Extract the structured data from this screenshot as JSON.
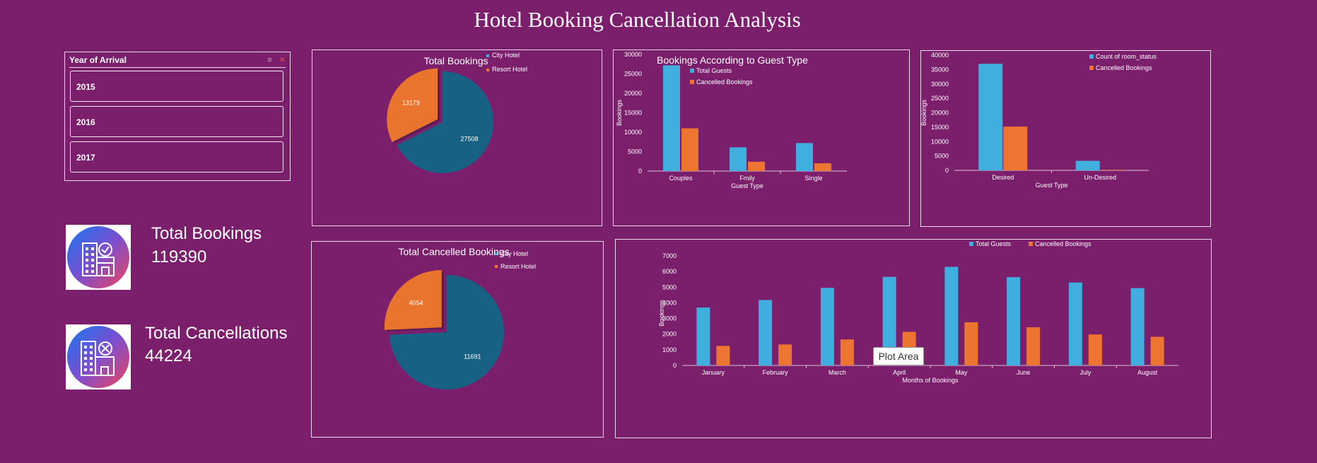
{
  "dashboard": {
    "title": "Hotel Booking Cancellation Analysis",
    "slicer": {
      "header": "Year of Arrival",
      "items": [
        "2015",
        "2016",
        "2017"
      ]
    },
    "kpis": {
      "bookings_label": "Total Bookings",
      "bookings_value": "119390",
      "cancellations_label": "Total Cancellations",
      "cancellations_value": "44224"
    },
    "tooltip": "Plot Area"
  },
  "colors": {
    "background": "#7b1f6c",
    "blue": "#41aee0",
    "orange": "#ed7532",
    "pie_blue": "#176184",
    "pie_orange": "#e9742e"
  },
  "chart_data": [
    {
      "id": "total-bookings",
      "type": "pie",
      "title": "Total Bookings",
      "labels": [
        "City Hotel",
        "Resort Hotel"
      ],
      "values": [
        27508,
        13179
      ],
      "legend": "top-right"
    },
    {
      "id": "total-cancelled",
      "type": "pie",
      "title": "Total Cancelled Bookings",
      "labels": [
        "City Hotel",
        "Resort Hotel"
      ],
      "values": [
        11691,
        4054
      ],
      "legend": "top-right"
    },
    {
      "id": "guest-type",
      "type": "bar",
      "title": "Bookings According to Guest Type",
      "categories": [
        "Couples",
        "Fmily",
        "Single"
      ],
      "series": [
        {
          "name": "Total Guests",
          "values": [
            27200,
            6100,
            7200
          ]
        },
        {
          "name": "Cancelled Bookings",
          "values": [
            11000,
            2400,
            2000
          ]
        }
      ],
      "xlabel": "Guest Type",
      "ylabel": "Bookings",
      "ylim": [
        0,
        30000
      ],
      "yticks": [
        "0",
        "5000",
        "10000",
        "15000",
        "20000",
        "25000",
        "30000"
      ],
      "legend": "top-right"
    },
    {
      "id": "room-status",
      "type": "bar",
      "title": "",
      "categories": [
        "Desired",
        "Un-Desired"
      ],
      "series": [
        {
          "name": "Count of room_status",
          "values": [
            37000,
            3300
          ]
        },
        {
          "name": "Cancelled Bookings",
          "values": [
            15200,
            200
          ]
        }
      ],
      "xlabel": "Guest Type",
      "ylabel": "Bookings",
      "ylim": [
        0,
        40000
      ],
      "yticks": [
        "0",
        "5000",
        "10000",
        "15000",
        "20000",
        "25000",
        "30000",
        "35000",
        "40000"
      ],
      "legend": "top-right"
    },
    {
      "id": "monthly",
      "type": "bar",
      "title": "",
      "categories": [
        "January",
        "February",
        "March",
        "April",
        "May",
        "June",
        "July",
        "August"
      ],
      "series": [
        {
          "name": "Total Guests",
          "values": [
            3700,
            4180,
            4960,
            5660,
            6300,
            5640,
            5300,
            4940
          ]
        },
        {
          "name": "Cancelled Bookings",
          "values": [
            1250,
            1340,
            1660,
            2150,
            2760,
            2440,
            1980,
            1830
          ]
        }
      ],
      "xlabel": "Months of Bookings",
      "ylabel": "Bookings",
      "ylim": [
        0,
        7000
      ],
      "yticks": [
        "0",
        "1000",
        "2000",
        "3000",
        "4000",
        "5000",
        "6000",
        "7000"
      ],
      "legend": "top-right"
    }
  ]
}
